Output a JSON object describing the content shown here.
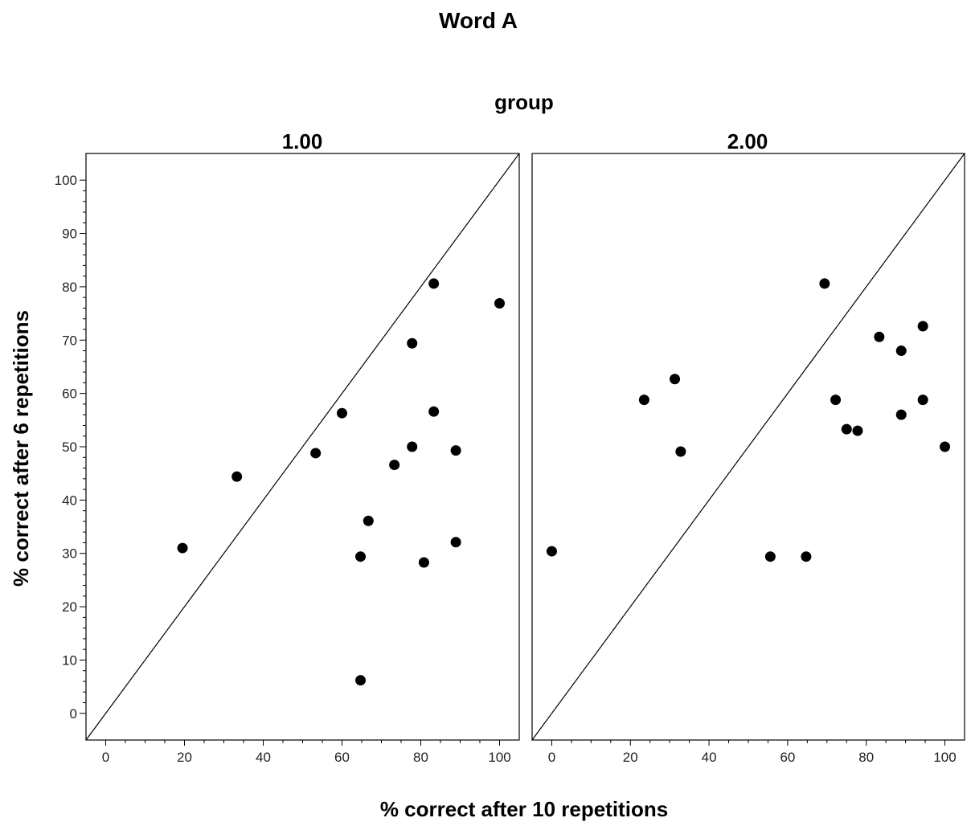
{
  "chart_data": {
    "type": "scatter",
    "title": "Word A",
    "facet_label": "group",
    "xlabel": "% correct after 10 repetitions",
    "ylabel": "% correct after 6 repetitions",
    "xlim": [
      -5,
      105
    ],
    "ylim": [
      -5,
      105
    ],
    "xticks": [
      "0",
      "20",
      "40",
      "60",
      "80",
      "100"
    ],
    "yticks": [
      "0",
      "10",
      "20",
      "30",
      "40",
      "50",
      "60",
      "70",
      "80",
      "90",
      "100"
    ],
    "reference_line": "y = x",
    "grid": false,
    "panels": [
      {
        "name": "1.00",
        "points": [
          {
            "x": 19.5,
            "y": 31.0
          },
          {
            "x": 33.3,
            "y": 44.4
          },
          {
            "x": 53.3,
            "y": 48.8
          },
          {
            "x": 60.0,
            "y": 56.3
          },
          {
            "x": 64.7,
            "y": 29.4
          },
          {
            "x": 64.7,
            "y": 6.2
          },
          {
            "x": 66.7,
            "y": 36.1
          },
          {
            "x": 73.3,
            "y": 46.6
          },
          {
            "x": 77.8,
            "y": 69.4
          },
          {
            "x": 77.8,
            "y": 50.0
          },
          {
            "x": 80.8,
            "y": 28.3
          },
          {
            "x": 83.3,
            "y": 80.6
          },
          {
            "x": 83.3,
            "y": 56.6
          },
          {
            "x": 88.9,
            "y": 49.3
          },
          {
            "x": 88.9,
            "y": 32.1
          },
          {
            "x": 100.0,
            "y": 76.9
          }
        ]
      },
      {
        "name": "2.00",
        "points": [
          {
            "x": 0.0,
            "y": 30.4
          },
          {
            "x": 23.5,
            "y": 58.8
          },
          {
            "x": 31.3,
            "y": 62.7
          },
          {
            "x": 32.8,
            "y": 49.1
          },
          {
            "x": 55.6,
            "y": 29.4
          },
          {
            "x": 64.7,
            "y": 29.4
          },
          {
            "x": 69.4,
            "y": 80.6
          },
          {
            "x": 72.2,
            "y": 58.8
          },
          {
            "x": 75.0,
            "y": 53.3
          },
          {
            "x": 77.8,
            "y": 53.0
          },
          {
            "x": 83.3,
            "y": 70.6
          },
          {
            "x": 88.9,
            "y": 68.0
          },
          {
            "x": 88.9,
            "y": 56.0
          },
          {
            "x": 94.4,
            "y": 72.6
          },
          {
            "x": 94.4,
            "y": 58.8
          },
          {
            "x": 100.0,
            "y": 50.0
          }
        ]
      }
    ]
  }
}
